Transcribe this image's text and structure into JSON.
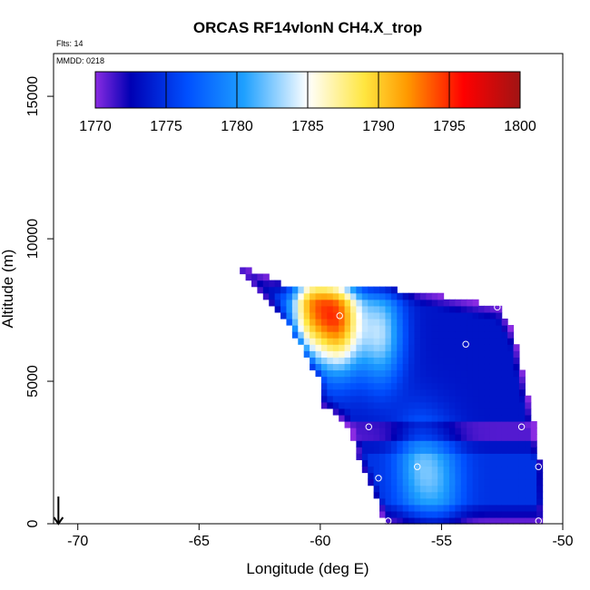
{
  "chart_data": {
    "type": "heatmap",
    "title": "ORCAS RF14vlonN CH4.X_trop",
    "annotations": {
      "flights": "Flts: 14",
      "date": "MMDD: 0218"
    },
    "xlabel": "Longitude (deg E)",
    "ylabel": "Altitude (m)",
    "xlim": [
      -71,
      -50
    ],
    "ylim": [
      0,
      16500
    ],
    "x_ticks": [
      -70,
      -65,
      -60,
      -55,
      -50
    ],
    "x_tick_labels": [
      "-70",
      "-65",
      "-60",
      "-55",
      "-50"
    ],
    "y_ticks": [
      0,
      5000,
      10000,
      15000
    ],
    "y_tick_labels": [
      "0",
      "5000",
      "10000",
      "15000"
    ],
    "colorbar": {
      "min": 1770,
      "max": 1800,
      "ticks": [
        1770,
        1775,
        1780,
        1785,
        1790,
        1795,
        1800
      ],
      "tick_labels": [
        "1770",
        "1775",
        "1780",
        "1785",
        "1790",
        "1795",
        "1800"
      ],
      "colors": [
        "#8a2be2",
        "#0000b4",
        "#0050ff",
        "#1ea0ff",
        "#ffffff",
        "#ffe640",
        "#ff9a00",
        "#ff0000",
        "#a01414"
      ],
      "stops": [
        1770,
        1772.5,
        1776.5,
        1780.5,
        1785,
        1789,
        1792,
        1796,
        1800
      ]
    },
    "field_polygon_lon_alt": [
      [
        -63.3,
        9100
      ],
      [
        -61.2,
        8300
      ],
      [
        -56.2,
        8200
      ],
      [
        -55.0,
        8000
      ],
      [
        -52.6,
        7600
      ],
      [
        -52.0,
        6600
      ],
      [
        -51.2,
        3500
      ],
      [
        -50.9,
        2000
      ],
      [
        -50.8,
        0
      ],
      [
        -57.3,
        0
      ],
      [
        -58.0,
        1500
      ],
      [
        -59.0,
        3600
      ],
      [
        -60.0,
        4200
      ],
      [
        -60.0,
        5000
      ],
      [
        -61.2,
        6800
      ],
      [
        -63.5,
        9000
      ]
    ],
    "maxima_lon_alt": [
      {
        "lon": -59.2,
        "alt": 7200,
        "value": 1791
      },
      {
        "lon": -60.4,
        "alt": 7700,
        "value": 1789
      },
      {
        "lon": -57.5,
        "alt": 6700,
        "value": 1783
      },
      {
        "lon": -56.0,
        "alt": 2000,
        "value": 1779
      },
      {
        "lon": -55.0,
        "alt": 1500,
        "value": 1778
      }
    ],
    "sample_points": [
      {
        "lon": -59.2,
        "alt": 7300
      },
      {
        "lon": -54.0,
        "alt": 6300
      },
      {
        "lon": -52.7,
        "alt": 7600
      },
      {
        "lon": -58.0,
        "alt": 3400
      },
      {
        "lon": -51.7,
        "alt": 3400
      },
      {
        "lon": -56.0,
        "alt": 2000
      },
      {
        "lon": -57.6,
        "alt": 1600
      },
      {
        "lon": -51.0,
        "alt": 2000
      },
      {
        "lon": -57.2,
        "alt": 100
      },
      {
        "lon": -51.0,
        "alt": 100
      }
    ],
    "arrow": {
      "lon": -70.8,
      "alt_top": 700,
      "alt_bottom": 0
    }
  }
}
